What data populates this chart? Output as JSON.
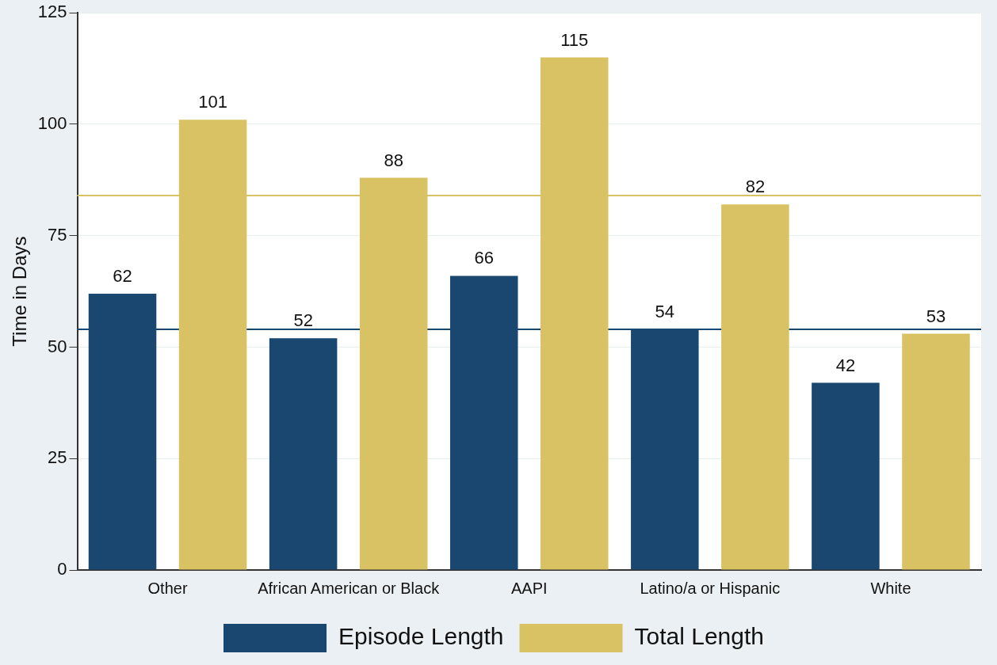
{
  "chart_data": {
    "type": "bar",
    "ylabel": "Time in Days",
    "categories": [
      "Other",
      "African American or Black",
      "AAPI",
      "Latino/a or Hispanic",
      "White"
    ],
    "series": [
      {
        "name": "Episode Length",
        "color": "#1a476f",
        "values": [
          62,
          52,
          66,
          54,
          42
        ]
      },
      {
        "name": "Total Length",
        "color": "#d9c264",
        "values": [
          101,
          88,
          115,
          82,
          53
        ]
      }
    ],
    "ylim": [
      0,
      125
    ],
    "yticks": [
      0,
      25,
      50,
      75,
      100,
      125
    ],
    "grid": "y",
    "legend": "bottom",
    "data_labels": true,
    "ref_lines": [
      {
        "axis": "y",
        "value": 54,
        "color": "#1a476f"
      },
      {
        "axis": "y",
        "value": 84,
        "color": "#d9c264"
      }
    ]
  }
}
